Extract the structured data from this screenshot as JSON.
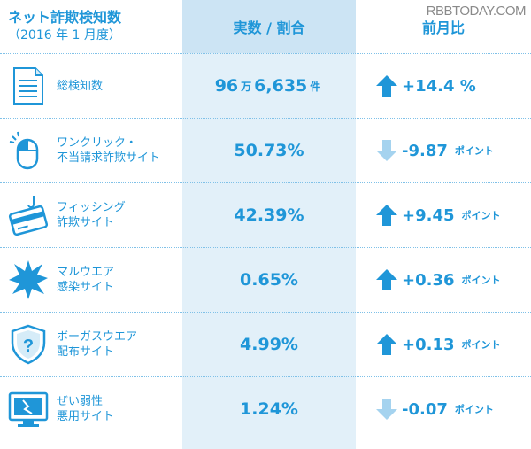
{
  "watermark": "RBBTODAY.COM",
  "header": {
    "title": "ネット詐欺検知数",
    "subtitle": "（2016 年 1 月度）",
    "col_value": "実数 / 割合",
    "col_change": "前月比"
  },
  "rows": [
    {
      "icon": "document-icon",
      "label1": "総検知数",
      "label2": "",
      "value_a": "96",
      "unit_a": "万",
      "value_b": "6,635",
      "unit_b": "件",
      "direction": "up",
      "change": "+14.4 %",
      "change_unit": ""
    },
    {
      "icon": "mouse-click-icon",
      "label1": "ワンクリック・",
      "label2": "不当請求詐欺サイト",
      "value_a": "50.73%",
      "unit_a": "",
      "value_b": "",
      "unit_b": "",
      "direction": "down",
      "change": "-9.87",
      "change_unit": "ポイント"
    },
    {
      "icon": "credit-card-hook-icon",
      "label1": "フィッシング",
      "label2": "詐欺サイト",
      "value_a": "42.39%",
      "unit_a": "",
      "value_b": "",
      "unit_b": "",
      "direction": "up",
      "change": "+9.45",
      "change_unit": "ポイント"
    },
    {
      "icon": "burst-icon",
      "label1": "マルウエア",
      "label2": "感染サイト",
      "value_a": "0.65%",
      "unit_a": "",
      "value_b": "",
      "unit_b": "",
      "direction": "up",
      "change": "+0.36",
      "change_unit": "ポイント"
    },
    {
      "icon": "shield-question-icon",
      "label1": "ボーガスウエア",
      "label2": "配布サイト",
      "value_a": "4.99%",
      "unit_a": "",
      "value_b": "",
      "unit_b": "",
      "direction": "up",
      "change": "+0.13",
      "change_unit": "ポイント"
    },
    {
      "icon": "broken-monitor-icon",
      "label1": "ぜい弱性",
      "label2": "悪用サイト",
      "value_a": "1.24%",
      "unit_a": "",
      "value_b": "",
      "unit_b": "",
      "direction": "down",
      "change": "-0.07",
      "change_unit": "ポイント"
    }
  ],
  "colors": {
    "accent": "#1f96d8",
    "up_arrow": "#1f96d8",
    "down_arrow": "#a5d3ef",
    "mid_bg": "#e2f0f9"
  }
}
